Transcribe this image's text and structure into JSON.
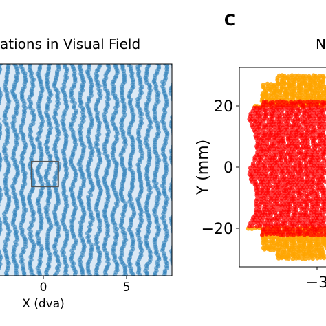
{
  "panel_c_label": "C",
  "panel_right_title_fragment": "N",
  "chart_data": [
    {
      "type": "scatter",
      "title": "ations in Visual Field",
      "xlabel": "X (dva)",
      "ylabel": "",
      "x_ticks": [
        0,
        5
      ],
      "x_tick_labels": [
        "0",
        "5"
      ],
      "xlim": [
        -2.8,
        7.7
      ],
      "ylim": [
        -7.5,
        7.7
      ],
      "grid": false,
      "pattern": "dense grid of ~20 columns of overlapping points with sinusoidal jitter",
      "colors": {
        "points": "#1f77b4"
      },
      "inset_box": {
        "x0": -0.7,
        "x1": 0.9,
        "y0": -1.0,
        "y1": 0.5
      }
    },
    {
      "type": "scatter",
      "title": "",
      "xlabel": "",
      "ylabel": "Y (mm)",
      "x_ticks": [
        -3
      ],
      "x_tick_labels": [
        "−3"
      ],
      "y_ticks": [
        20,
        0,
        -20
      ],
      "y_tick_labels": [
        "20",
        "0",
        "−20"
      ],
      "xlim": [
        -4.0,
        0.5
      ],
      "ylim": [
        -32,
        32
      ],
      "grid": false,
      "series": [
        {
          "color": "#ff0000",
          "region": "central band, |Y| < ~20 mm with scalloped left edge"
        },
        {
          "color": "#ffa500",
          "region": "top and bottom caps, |Y| > ~20 mm"
        }
      ]
    }
  ]
}
